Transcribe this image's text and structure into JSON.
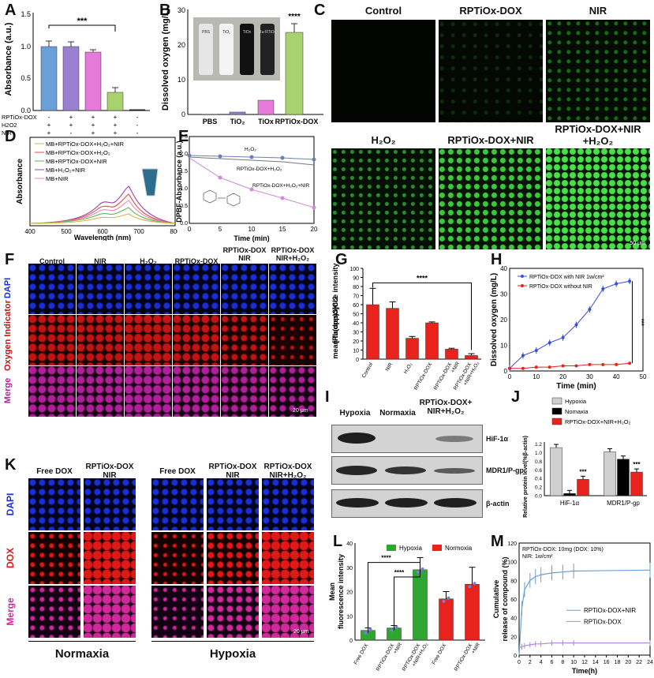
{
  "panel_letters": [
    "A",
    "B",
    "C",
    "D",
    "E",
    "F",
    "G",
    "H",
    "I",
    "J",
    "K",
    "L",
    "M"
  ],
  "colors": {
    "blue": "#6a9fd8",
    "purple": "#9b7fd1",
    "pink": "#e67ad9",
    "green": "#a8d26e",
    "red": "#e8231e",
    "black": "#000000",
    "gray": "#cfcfcf",
    "dgreen": "#2fa62f"
  },
  "panelA": {
    "ylabel": "Absorbance (a.u.)",
    "significance": "***",
    "row_labels": [
      "RPTiOx-DOX",
      "H2O2",
      "NIR"
    ],
    "rows": [
      [
        "-",
        "+",
        "+",
        "+",
        "-"
      ],
      [
        "+",
        "+",
        "+",
        "+",
        "-"
      ],
      [
        "+",
        "-",
        "+",
        "+",
        "-"
      ]
    ],
    "yticks": [
      "0.0",
      "0.5",
      "1.0",
      "1.5"
    ]
  },
  "panelB": {
    "ylabel": "Dissolved oxygen (mg/L)",
    "significance": "****",
    "categories": [
      "PBS",
      "TiO₂",
      "TiOx",
      "RPTiOx-DOX"
    ],
    "yticks": [
      "0",
      "10",
      "20",
      "30"
    ],
    "vial_labels": [
      "PBS",
      "TiO₂",
      "TiOx",
      "Ru-RTiOx"
    ]
  },
  "panelC": {
    "titles": [
      "Control",
      "RPTiOx-DOX",
      "NIR",
      "H₂O₂",
      "RPTiOx-DOX+NIR",
      "RPTiOx-DOX+NIR\n+H₂O₂"
    ],
    "scalebar": "50 μm"
  },
  "panelD": {
    "ylabel": "Absorbance",
    "xlabel": "Wavelength (nm)",
    "legend": [
      "MB+RPTiOx-DOX+H₂O₂+NIR",
      "MB+RPTiOx-DOX+H₂O₂",
      "MB+RPTiOx-DOX+NIR",
      "MB+H₂O₂+NIR",
      "MB+NIR"
    ],
    "xticks": [
      "400",
      "500",
      "600",
      "700",
      "800"
    ]
  },
  "panelE": {
    "ylabel": "DPBF-Absorbance (a.u.)",
    "xlabel": "Time (min)",
    "labels": [
      "H₂O₂",
      "RPTiOx-DOX+H₂O₂",
      "RPTiOx-DOX+H₂O₂+NIR"
    ],
    "xticks": [
      "0",
      "5",
      "10",
      "15",
      "20"
    ],
    "yticks": [
      "0.0",
      "0.5",
      "1.0",
      "1.5",
      "2.0",
      "2.5"
    ]
  },
  "panelF": {
    "titles": [
      "Control",
      "NIR",
      "H₂O₂",
      "RPTiOx-DOX",
      "RPTiOx-DOX\nNIR",
      "RPTiOx-DOX\nNIR+H₂O₂"
    ],
    "rows": [
      "DAPI",
      "Oxygen Indicator",
      "Merge"
    ],
    "scalebar": "20 μm"
  },
  "panelG": {
    "ylabel": "[Ru(dpp)3]Cl2\nmean fluorescence intensity",
    "significance": "****",
    "categories": [
      "Control",
      "NIR",
      "H₂O₂",
      "RPTiOx-DOX",
      "RPTiOx-DOX\n+NIR",
      "RPTiOx-DOX\n+NIR+H₂O₂"
    ],
    "values": [
      60,
      56,
      23,
      40,
      11,
      4
    ],
    "errors": [
      18,
      7,
      2,
      1,
      1,
      2
    ],
    "yticks": [
      "0",
      "10",
      "20",
      "30",
      "40",
      "50",
      "60",
      "70",
      "80",
      "90",
      "100"
    ],
    "ylim": [
      0,
      100
    ]
  },
  "panelH": {
    "ylabel": "Dissolved oxygen (mg/L)",
    "xlabel": "Time (min)",
    "legend": [
      "RPTiOx-DOX with NIR 1w/cm²",
      "RPTiOx-DOX without NIR"
    ],
    "significance": "***",
    "x": [
      0,
      5,
      10,
      15,
      20,
      25,
      30,
      35,
      40,
      45
    ],
    "series": [
      {
        "name": "RPTiOx-DOX with NIR 1w/cm²",
        "values": [
          1,
          6,
          8,
          11,
          13,
          18,
          24,
          32,
          34,
          35
        ]
      },
      {
        "name": "RPTiOx-DOX without NIR",
        "values": [
          1,
          1,
          1.5,
          1.5,
          2,
          2,
          2.5,
          2.5,
          2.5,
          3
        ]
      }
    ],
    "xticks": [
      "0",
      "10",
      "20",
      "30",
      "40",
      "50"
    ],
    "yticks": [
      "0",
      "10",
      "20",
      "30",
      "40"
    ],
    "xlim": [
      0,
      50
    ],
    "ylim": [
      0,
      40
    ]
  },
  "panelI": {
    "columns": [
      "Hypoxia",
      "Normaxia",
      "RPTiOx-DOX+\nNIR+H₂O₂"
    ],
    "bands": [
      "HiF-1α",
      "MDR1/P-gp",
      "β-actin"
    ]
  },
  "panelJ": {
    "ylabel": "Relative protein level(%β-actin)",
    "legend": [
      "Hypoxia",
      "Nomaxia",
      "RPTiOx-DOX+NIR+H₂O₂"
    ],
    "categories": [
      "HiF-1α",
      "MDR1/P-gp"
    ],
    "significance": [
      "***",
      "***"
    ],
    "series": [
      {
        "name": "Hypoxia",
        "values": [
          1.12,
          1.02
        ]
      },
      {
        "name": "Nomaxia",
        "values": [
          0.05,
          0.85
        ]
      },
      {
        "name": "RPTiOx-DOX+NIR+H₂O₂",
        "values": [
          0.38,
          0.55
        ]
      }
    ],
    "yticks": [
      "0.0",
      "0.2",
      "0.4",
      "0.6",
      "0.8",
      "1.0",
      "1.2"
    ],
    "ylim": [
      0,
      1.25
    ]
  },
  "panelK": {
    "titles": [
      "Free DOX",
      "RPTiOx-DOX\nNIR",
      "Free DOX",
      "RPTiOx-DOX\nNIR",
      "RPTiOx-DOX\nNIR+H₂O₂"
    ],
    "rows": [
      "DAPI",
      "DOX",
      "Merge"
    ],
    "groups": [
      "Normaxia",
      "Hypoxia"
    ],
    "scalebar": "20 μm"
  },
  "panelL": {
    "ylabel": "Mean\nfluorescence intensity",
    "legend": [
      "Hypoxia",
      "Normoxia"
    ],
    "significance": [
      "****",
      "****"
    ],
    "categories": [
      "Free DOX",
      "RPTiOx-DOX\n+NIR",
      "RPTiOx-DOX\n+NIR+H₂O₂",
      "Free DOX",
      "RPTiOx-DOX\n+NIR"
    ],
    "values": [
      4,
      5,
      29,
      17,
      23
    ],
    "errors": [
      1,
      1,
      5,
      3,
      7
    ],
    "yticks": [
      "0",
      "10",
      "20",
      "30",
      "40"
    ],
    "ylim": [
      0,
      40
    ]
  },
  "panelM": {
    "ylabel": "Cumulative\nrelease of compound (%)",
    "xlabel": "Time(h)",
    "note1": "RPTiOx-DOX: 10mg (DOX: 10%)",
    "note2": "NIR: 1w/cm²",
    "legend": [
      "RPTiOx-DOX+NIR",
      "RPTiOx-DOX"
    ],
    "xticks": [
      "0",
      "2",
      "4",
      "6",
      "8",
      "10",
      "12",
      "14",
      "16",
      "18",
      "20",
      "22",
      "24"
    ],
    "yticks": [
      "0",
      "20",
      "40",
      "60",
      "80",
      "100",
      "120"
    ],
    "xlim": [
      0,
      24
    ],
    "ylim": [
      0,
      120
    ]
  }
}
